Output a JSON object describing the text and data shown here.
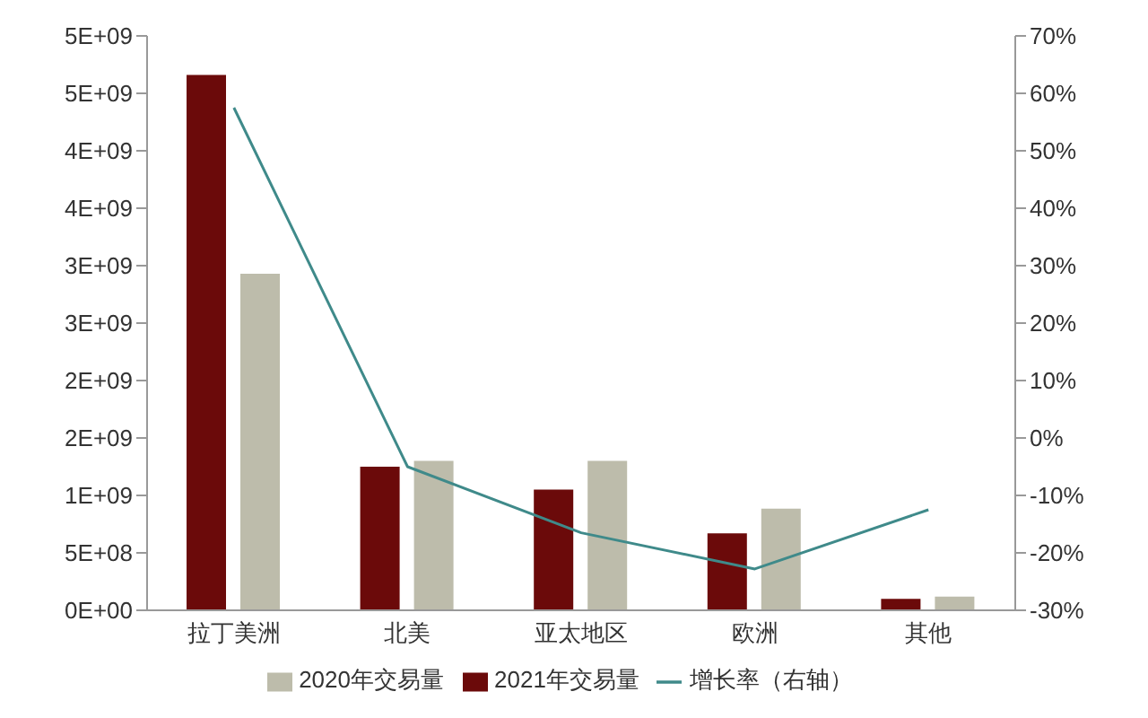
{
  "chart_data": {
    "type": "bar",
    "categories": [
      "拉丁美洲",
      "北美",
      "亚太地区",
      "欧洲",
      "其他"
    ],
    "series": [
      {
        "name": "2021年交易量",
        "color": "#6b0a0a",
        "values": [
          4660000000,
          1250000000,
          1050000000,
          670000000,
          100000000
        ]
      },
      {
        "name": "2020年交易量",
        "color": "#bdbcab",
        "values": [
          2930000000,
          1300000000,
          1300000000,
          885000000,
          120000000
        ]
      },
      {
        "name": "增长率（右轴）",
        "type": "line",
        "axis": "y2",
        "color": "#3f8a8a",
        "values": [
          57.5,
          -5,
          -16.5,
          -22.8,
          -12.5
        ]
      }
    ],
    "ylim": [
      0,
      5000000000
    ],
    "yticks": [
      {
        "value": 0,
        "label": "0E+00"
      },
      {
        "value": 500000000,
        "label": "5E+08"
      },
      {
        "value": 1000000000,
        "label": "1E+09"
      },
      {
        "value": 1500000000,
        "label": "2E+09"
      },
      {
        "value": 2000000000,
        "label": "2E+09"
      },
      {
        "value": 2500000000,
        "label": "3E+09"
      },
      {
        "value": 3000000000,
        "label": "3E+09"
      },
      {
        "value": 3500000000,
        "label": "4E+09"
      },
      {
        "value": 4000000000,
        "label": "4E+09"
      },
      {
        "value": 4500000000,
        "label": "5E+09"
      },
      {
        "value": 5000000000,
        "label": "5E+09"
      }
    ],
    "y2lim": [
      -30,
      70
    ],
    "y2ticks": [
      {
        "value": -30,
        "label": "-30%"
      },
      {
        "value": -20,
        "label": "-20%"
      },
      {
        "value": -10,
        "label": "-10%"
      },
      {
        "value": 0,
        "label": "0%"
      },
      {
        "value": 10,
        "label": "10%"
      },
      {
        "value": 20,
        "label": "20%"
      },
      {
        "value": 30,
        "label": "30%"
      },
      {
        "value": 40,
        "label": "40%"
      },
      {
        "value": 50,
        "label": "50%"
      },
      {
        "value": 60,
        "label": "60%"
      },
      {
        "value": 70,
        "label": "70%"
      }
    ],
    "grid": false,
    "legend": "bottom",
    "marker": "none"
  }
}
